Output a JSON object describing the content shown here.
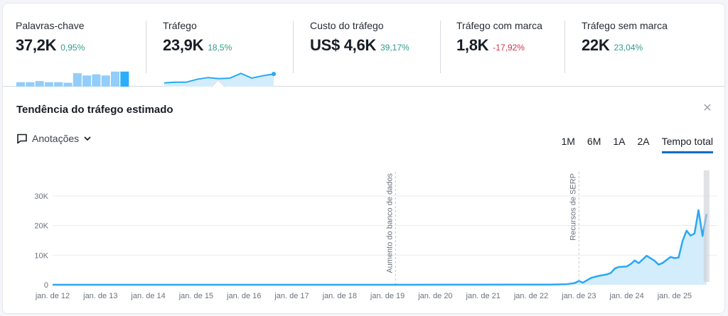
{
  "metrics": [
    {
      "label": "Palavras-chave",
      "value": "37,2K",
      "delta": "0,95%",
      "trend": "positive"
    },
    {
      "label": "Tráfego",
      "value": "23,9K",
      "delta": "18,5%",
      "trend": "positive"
    },
    {
      "label": "Custo do tráfego",
      "value": "US$ 4,6K",
      "delta": "39,17%",
      "trend": "positive"
    },
    {
      "label": "Tráfego com marca",
      "value": "1,8K",
      "delta": "-17,92%",
      "trend": "negative"
    },
    {
      "label": "Tráfego sem marca",
      "value": "22K",
      "delta": "23,04%",
      "trend": "positive"
    }
  ],
  "panel": {
    "title": "Tendência do tráfego estimado",
    "close_icon": "close-icon",
    "annotations_label": "Anotações",
    "ranges": [
      "1M",
      "6M",
      "1A",
      "2A",
      "Tempo total"
    ],
    "active_range": "Tempo total"
  },
  "colors": {
    "accent": "#2aa8f4",
    "area_fill": "#d3edfc",
    "positive": "#2f9d8a",
    "negative": "#d1344e",
    "active_tab": "#006dca"
  },
  "chart_data": {
    "type": "area",
    "title": "Tendência do tráfego estimado",
    "xlabel": "",
    "ylabel": "",
    "ylim": [
      0,
      30000
    ],
    "yticks": [
      "0",
      "10K",
      "20K",
      "30K"
    ],
    "xticks": [
      "jan. de 12",
      "jan. de 13",
      "jan. de 14",
      "jan. de 15",
      "jan. de 16",
      "jan. de 17",
      "jan. de 18",
      "jan. de 19",
      "jan. de 20",
      "jan. de 21",
      "jan. de 22",
      "jan. de 23",
      "jan. de 24",
      "jan. de 25"
    ],
    "grid": true,
    "annotations": [
      {
        "label": "Aumento do banco de dados",
        "x": "2019-03"
      },
      {
        "label": "Recursos de SERP",
        "x": "2023-01"
      }
    ],
    "series": [
      {
        "name": "Tráfego",
        "x": [
          "2012-01",
          "2019-01",
          "2022-06",
          "2022-10",
          "2022-12",
          "2023-01",
          "2023-02",
          "2023-04",
          "2023-06",
          "2023-08",
          "2023-09",
          "2023-10",
          "2023-11",
          "2024-01",
          "2024-02",
          "2024-03",
          "2024-04",
          "2024-06",
          "2024-08",
          "2024-09",
          "2024-10",
          "2024-12",
          "2025-01",
          "2025-02",
          "2025-03",
          "2025-04",
          "2025-05",
          "2025-06",
          "2025-07",
          "2025-08"
        ],
        "values": [
          0,
          0,
          50,
          200,
          600,
          1300,
          700,
          2300,
          3000,
          3500,
          4000,
          5500,
          6000,
          6200,
          7000,
          8200,
          7300,
          9800,
          8100,
          6800,
          7400,
          9400,
          9000,
          9200,
          14800,
          18300,
          16600,
          17300,
          25200,
          16500
        ]
      }
    ],
    "last_point": {
      "x": "2025-09",
      "value": 23900
    }
  },
  "mini_charts": {
    "keywords_bars": [
      4,
      4,
      5,
      4,
      4,
      3.5,
      12,
      10,
      11,
      10,
      13.5,
      13.5
    ],
    "traffic_line": [
      2,
      2.5,
      2.5,
      5,
      6.5,
      5.5,
      6,
      10,
      6,
      8,
      9.5
    ]
  }
}
